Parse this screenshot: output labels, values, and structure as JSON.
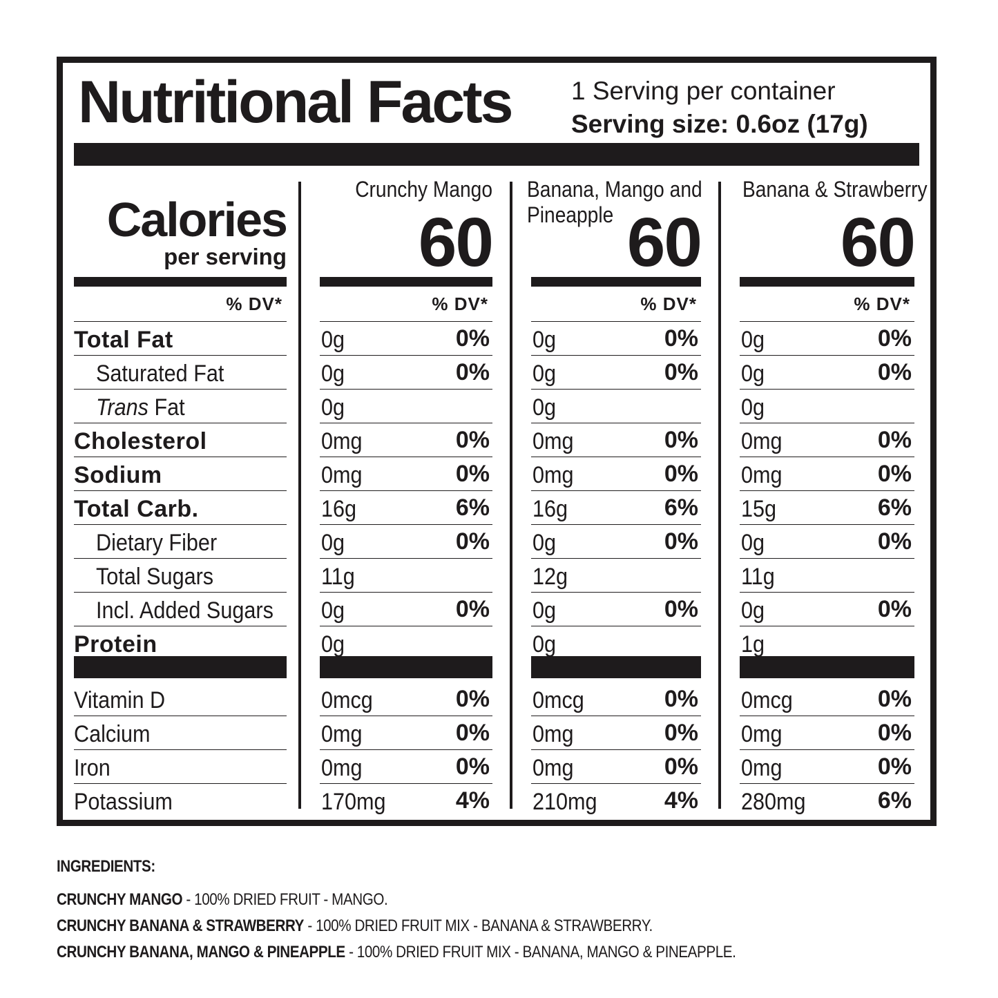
{
  "header": {
    "title": "Nutritional Facts",
    "servings_per_container": "1 Serving per container",
    "serving_size": "Serving size: 0.6oz (17g)"
  },
  "calories": {
    "label": "Calories",
    "sublabel": "per serving"
  },
  "dv_header": "% DV*",
  "nutrients": [
    {
      "label": "Total Fat",
      "style": "bold"
    },
    {
      "label": "Saturated Fat",
      "style": "indent"
    },
    {
      "label_italic": "Trans",
      "label": " Fat",
      "style": "indent"
    },
    {
      "label": "Cholesterol",
      "style": "bold"
    },
    {
      "label": "Sodium",
      "style": "bold"
    },
    {
      "label": "Total Carb.",
      "style": "bold"
    },
    {
      "label": "Dietary Fiber",
      "style": "indent"
    },
    {
      "label": "Total Sugars",
      "style": "indent"
    },
    {
      "label": "Incl. Added Sugars",
      "style": "indent"
    },
    {
      "label": "Protein",
      "style": "bold"
    }
  ],
  "vitamins": [
    {
      "label": "Vitamin D"
    },
    {
      "label": "Calcium"
    },
    {
      "label": "Iron"
    },
    {
      "label": "Potassium"
    }
  ],
  "products": [
    {
      "name_line1": "Crunchy Mango",
      "name_line2": "",
      "calories": "60",
      "nutrients": [
        {
          "amount": "0g",
          "dv": "0%"
        },
        {
          "amount": "0g",
          "dv": "0%"
        },
        {
          "amount": "0g",
          "dv": ""
        },
        {
          "amount": "0mg",
          "dv": "0%"
        },
        {
          "amount": "0mg",
          "dv": "0%"
        },
        {
          "amount": "16g",
          "dv": "6%"
        },
        {
          "amount": "0g",
          "dv": "0%"
        },
        {
          "amount": "11g",
          "dv": ""
        },
        {
          "amount": "0g",
          "dv": "0%"
        },
        {
          "amount": "0g",
          "dv": ""
        }
      ],
      "vitamins": [
        {
          "amount": "0mcg",
          "dv": "0%"
        },
        {
          "amount": "0mg",
          "dv": "0%"
        },
        {
          "amount": "0mg",
          "dv": "0%"
        },
        {
          "amount": "170mg",
          "dv": "4%"
        }
      ]
    },
    {
      "name_line1": "Banana, Mango and",
      "name_line2": "Pineapple",
      "calories": "60",
      "nutrients": [
        {
          "amount": "0g",
          "dv": "0%"
        },
        {
          "amount": "0g",
          "dv": "0%"
        },
        {
          "amount": "0g",
          "dv": ""
        },
        {
          "amount": "0mg",
          "dv": "0%"
        },
        {
          "amount": "0mg",
          "dv": "0%"
        },
        {
          "amount": "16g",
          "dv": "6%"
        },
        {
          "amount": "0g",
          "dv": "0%"
        },
        {
          "amount": "12g",
          "dv": ""
        },
        {
          "amount": "0g",
          "dv": "0%"
        },
        {
          "amount": "0g",
          "dv": ""
        }
      ],
      "vitamins": [
        {
          "amount": "0mcg",
          "dv": "0%"
        },
        {
          "amount": "0mg",
          "dv": "0%"
        },
        {
          "amount": "0mg",
          "dv": "0%"
        },
        {
          "amount": "210mg",
          "dv": "4%"
        }
      ]
    },
    {
      "name_line1": "Banana & Strawberry",
      "name_line2": "",
      "calories": "60",
      "nutrients": [
        {
          "amount": "0g",
          "dv": "0%"
        },
        {
          "amount": "0g",
          "dv": "0%"
        },
        {
          "amount": "0g",
          "dv": ""
        },
        {
          "amount": "0mg",
          "dv": "0%"
        },
        {
          "amount": "0mg",
          "dv": "0%"
        },
        {
          "amount": "15g",
          "dv": "6%"
        },
        {
          "amount": "0g",
          "dv": "0%"
        },
        {
          "amount": "11g",
          "dv": ""
        },
        {
          "amount": "0g",
          "dv": "0%"
        },
        {
          "amount": "1g",
          "dv": ""
        }
      ],
      "vitamins": [
        {
          "amount": "0mcg",
          "dv": "0%"
        },
        {
          "amount": "0mg",
          "dv": "0%"
        },
        {
          "amount": "0mg",
          "dv": "0%"
        },
        {
          "amount": "280mg",
          "dv": "6%"
        }
      ]
    }
  ],
  "ingredients": {
    "heading": "INGREDIENTS:",
    "lines": [
      {
        "name": "CRUNCHY MANGO",
        "text": " - 100% DRIED FRUIT - MANGO."
      },
      {
        "name": "CRUNCHY BANANA & STRAWBERRY",
        "text": " - 100% DRIED FRUIT MIX - BANANA & STRAWBERRY."
      },
      {
        "name": "CRUNCHY BANANA, MANGO & PINEAPPLE",
        "text": " - 100% DRIED FRUIT MIX - BANANA, MANGO & PINEAPPLE."
      }
    ]
  }
}
